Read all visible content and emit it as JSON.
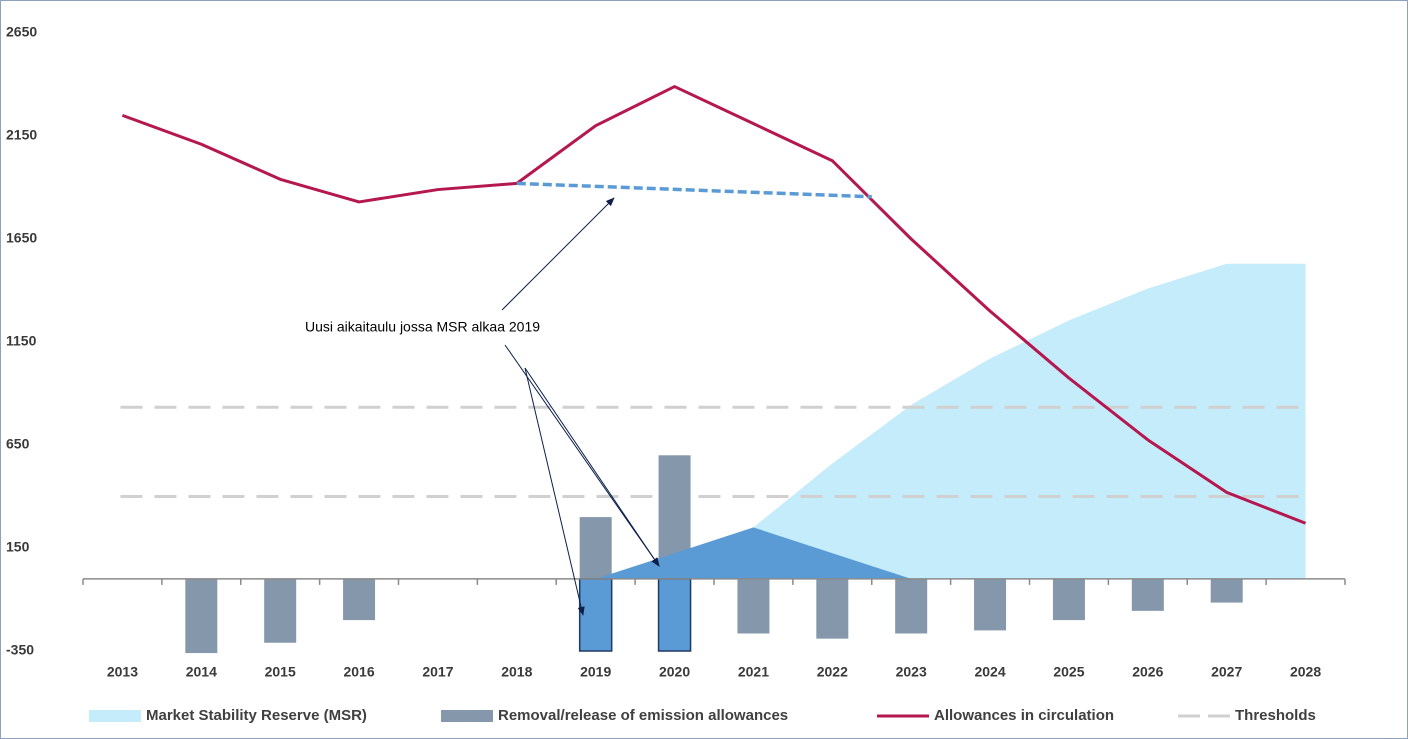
{
  "chart_data": {
    "type": "combo",
    "x": [
      2013,
      2014,
      2015,
      2016,
      2017,
      2018,
      2019,
      2020,
      2021,
      2022,
      2023,
      2024,
      2025,
      2026,
      2027,
      2028
    ],
    "xlim": [
      2012.5,
      2028.5
    ],
    "ylim": [
      -350,
      2650
    ],
    "yticks": [
      -350,
      150,
      650,
      1150,
      1650,
      2150,
      2650
    ],
    "series": [
      {
        "name": "Market Stability Reserve (MSR)",
        "type": "area",
        "color": "#c5ecfb",
        "values": [
          null,
          null,
          null,
          null,
          null,
          null,
          null,
          null,
          250,
          560,
          845,
          1070,
          1255,
          1410,
          1530,
          1530
        ]
      },
      {
        "name": "Removal/release of emission allowances",
        "type": "bar",
        "color": "#8497ab",
        "values": [
          null,
          -360,
          -310,
          -200,
          null,
          null,
          300,
          600,
          -265,
          -290,
          -265,
          -250,
          -200,
          -155,
          -115,
          null
        ]
      },
      {
        "name": "Allowances in circulation",
        "type": "line",
        "color": "#b5174f",
        "values": [
          2250,
          2110,
          1940,
          1830,
          1890,
          1920,
          2200,
          2390,
          2210,
          2030,
          1650,
          1300,
          975,
          675,
          420,
          270
        ]
      }
    ],
    "thresholds": {
      "name": "Thresholds",
      "color": "#d0d0d0",
      "values": [
        833,
        400
      ]
    },
    "new_schedule": {
      "color": "#5b9bd5",
      "line": {
        "x": [
          2018,
          2022.5
        ],
        "values": [
          1920,
          1855
        ]
      },
      "triangle": {
        "x": [
          2019,
          2021,
          2023
        ],
        "values": [
          0,
          250,
          0
        ]
      },
      "bars": {
        "x": [
          2019,
          2020
        ],
        "values": [
          -350,
          -350
        ]
      }
    },
    "annotation": "Uusi aikaitaulu jossa MSR alkaa 2019"
  }
}
